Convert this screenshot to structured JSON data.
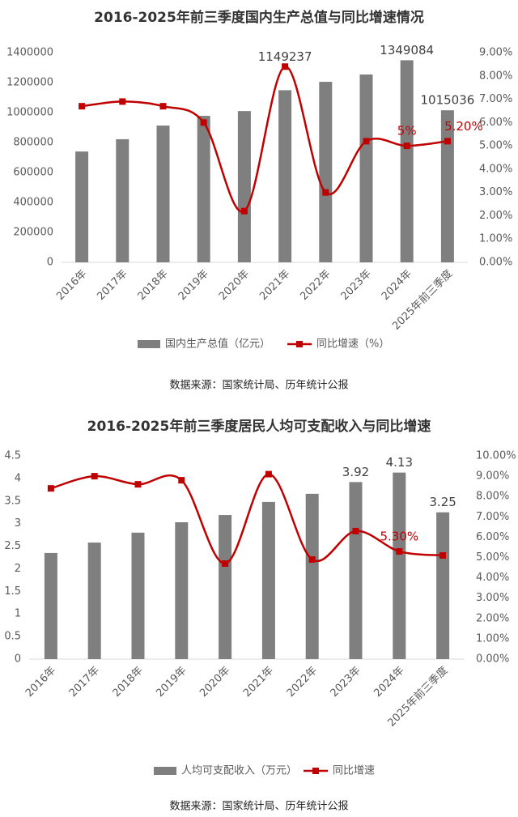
{
  "chart_data": [
    {
      "type": "bar_line",
      "title": "2016-2025年前三季度国内生产总值与同比增速情况",
      "categories": [
        "2016年",
        "2017年",
        "2018年",
        "2019年",
        "2020年",
        "2021年",
        "2022年",
        "2023年",
        "2024年",
        "2025年前三季度"
      ],
      "series": [
        {
          "name": "国内生产总值（亿元）",
          "color": "#7f7f7f",
          "values": [
            740000,
            822000,
            913000,
            978000,
            1010000,
            1149237,
            1205000,
            1254000,
            1349084,
            1015036
          ],
          "value_labels": [
            null,
            null,
            null,
            null,
            null,
            "1149237",
            null,
            null,
            "1349084",
            "1015036"
          ]
        },
        {
          "name": "同比增速（%）",
          "color": "#c00000",
          "axis": "y2",
          "values": [
            6.7,
            6.9,
            6.7,
            6.0,
            2.2,
            8.4,
            3.0,
            5.2,
            5.0,
            5.2
          ],
          "value_labels": [
            null,
            null,
            null,
            null,
            null,
            null,
            null,
            null,
            "5%",
            "5.20%"
          ]
        }
      ],
      "ylim": [
        0,
        1400000
      ],
      "yticks": [
        0,
        200000,
        400000,
        600000,
        800000,
        1000000,
        1200000,
        1400000
      ],
      "y2lim": [
        0,
        9
      ],
      "y2ticks": [
        {
          "value": 0,
          "label": "0.00%"
        },
        {
          "value": 1,
          "label": "1.00%"
        },
        {
          "value": 2,
          "label": "2.00%"
        },
        {
          "value": 3,
          "label": "3.00%"
        },
        {
          "value": 4,
          "label": "4.00%"
        },
        {
          "value": 5,
          "label": "5.00%"
        },
        {
          "value": 6,
          "label": "6.00%"
        },
        {
          "value": 7,
          "label": "7.00%"
        },
        {
          "value": 8,
          "label": "8.00%"
        },
        {
          "value": 9,
          "label": "9.00%"
        }
      ],
      "source": "数据来源：国家统计局、历年统计公报"
    },
    {
      "type": "bar_line",
      "title": "2016-2025年前三季度居民人均可支配收入与同比增速",
      "categories": [
        "2016年",
        "2017年",
        "2018年",
        "2019年",
        "2020年",
        "2021年",
        "2022年",
        "2023年",
        "2024年",
        "2025年前三季度"
      ],
      "series": [
        {
          "name": "人均可支配收入（万元）",
          "color": "#7f7f7f",
          "values": [
            2.35,
            2.58,
            2.8,
            3.03,
            3.19,
            3.48,
            3.66,
            3.92,
            4.13,
            3.25
          ],
          "value_labels": [
            null,
            null,
            null,
            null,
            null,
            null,
            null,
            "3.92",
            "4.13",
            "3.25"
          ]
        },
        {
          "name": "同比增速",
          "color": "#c00000",
          "axis": "y2",
          "values": [
            8.4,
            9.0,
            8.6,
            8.8,
            4.7,
            9.1,
            4.9,
            6.3,
            5.3,
            5.1
          ],
          "value_labels": [
            null,
            null,
            null,
            null,
            null,
            null,
            null,
            null,
            "5.30%",
            null
          ]
        }
      ],
      "ylim": [
        0,
        4.5
      ],
      "yticks": [
        0,
        0.5,
        1,
        1.5,
        2,
        2.5,
        3,
        3.5,
        4,
        4.5
      ],
      "y2lim": [
        0,
        10
      ],
      "y2ticks": [
        {
          "value": 0,
          "label": "0.00%"
        },
        {
          "value": 1,
          "label": "1.00%"
        },
        {
          "value": 2,
          "label": "2.00%"
        },
        {
          "value": 3,
          "label": "3.00%"
        },
        {
          "value": 4,
          "label": "4.00%"
        },
        {
          "value": 5,
          "label": "5.00%"
        },
        {
          "value": 6,
          "label": "6.00%"
        },
        {
          "value": 7,
          "label": "7.00%"
        },
        {
          "value": 8,
          "label": "8.00%"
        },
        {
          "value": 9,
          "label": "9.00%"
        },
        {
          "value": 10,
          "label": "10.00%"
        }
      ],
      "source": "数据来源：国家统计局、历年统计公报"
    }
  ]
}
